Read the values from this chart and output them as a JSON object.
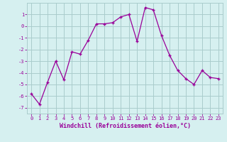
{
  "x": [
    0,
    1,
    2,
    3,
    4,
    5,
    6,
    7,
    8,
    9,
    10,
    11,
    12,
    13,
    14,
    15,
    16,
    17,
    18,
    19,
    20,
    21,
    22,
    23
  ],
  "y": [
    -5.8,
    -6.7,
    -4.8,
    -3.0,
    -4.6,
    -2.2,
    -2.4,
    -1.2,
    0.2,
    0.2,
    0.3,
    0.8,
    1.0,
    -1.3,
    1.6,
    1.4,
    -0.8,
    -2.5,
    -3.8,
    -4.5,
    -5.0,
    -3.8,
    -4.4,
    -4.5
  ],
  "line_color": "#990099",
  "marker": "+",
  "bg_color": "#d6f0f0",
  "grid_color": "#aacccc",
  "xlabel": "Windchill (Refroidissement éolien,°C)",
  "xlabel_color": "#990099",
  "tick_color": "#990099",
  "xlim": [
    -0.5,
    23.5
  ],
  "ylim": [
    -7.5,
    2.0
  ],
  "yticks": [
    -7,
    -6,
    -5,
    -4,
    -3,
    -2,
    -1,
    0,
    1
  ],
  "xticks": [
    0,
    1,
    2,
    3,
    4,
    5,
    6,
    7,
    8,
    9,
    10,
    11,
    12,
    13,
    14,
    15,
    16,
    17,
    18,
    19,
    20,
    21,
    22,
    23
  ]
}
